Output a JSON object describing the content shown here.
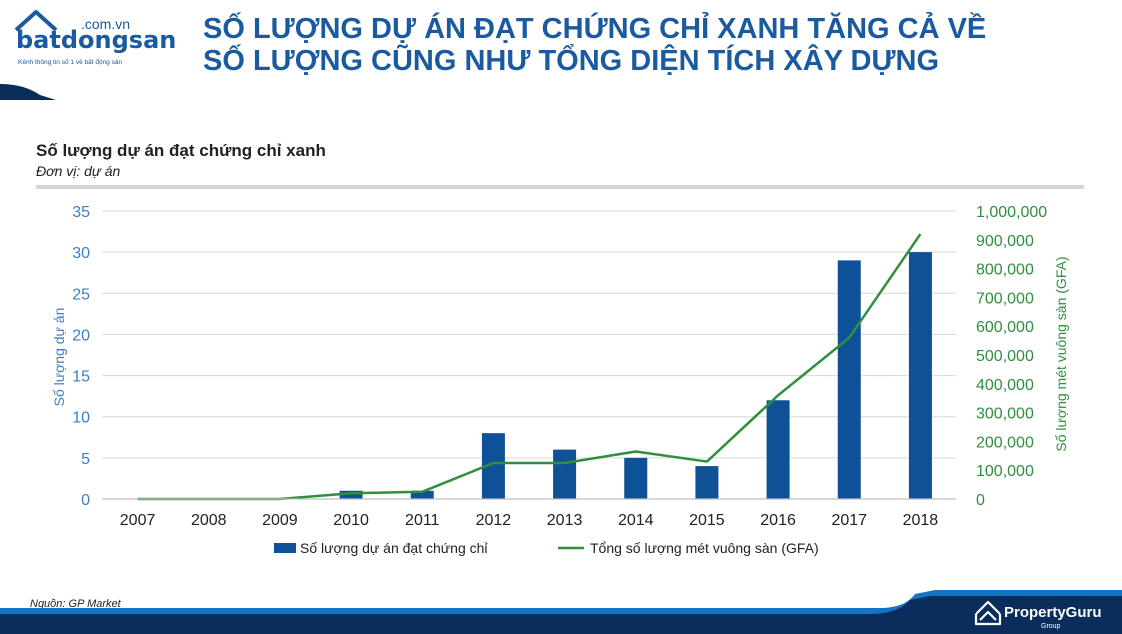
{
  "header": {
    "logo": {
      "name": "batdongsan",
      "domain": ".com.vn",
      "tagline": "Kênh thông tin số 1 về bất động sản"
    },
    "title_line1": "SỐ LƯỢNG DỰ ÁN ĐẠT CHỨNG CHỈ XANH TĂNG CẢ VỀ",
    "title_line2": "SỐ LƯỢNG CŨNG NHƯ TỔNG DIỆN TÍCH XÂY DỰNG"
  },
  "colors": {
    "brand_blue": "#1a5aa0",
    "bar_blue": "#0e5197",
    "line_green": "#2f8f3f",
    "left_axis_text": "#3d7fc0",
    "right_axis_text": "#2f8f3f",
    "footer_navy": "#0b2d5b",
    "footer_blue": "#1573c6"
  },
  "chart_data": {
    "type": "bar",
    "title": "Số lượng dự án đạt chứng chỉ xanh",
    "subtitle": "Đơn vị: dự án",
    "categories": [
      "2007",
      "2008",
      "2009",
      "2010",
      "2011",
      "2012",
      "2013",
      "2014",
      "2015",
      "2016",
      "2017",
      "2018"
    ],
    "series": [
      {
        "name": "Số lượng dự án đạt chứng chỉ",
        "type": "bar",
        "axis": "left",
        "values": [
          0,
          0,
          0,
          1,
          1,
          8,
          6,
          5,
          4,
          12,
          29,
          30
        ]
      },
      {
        "name": "Tổng số lượng mét vuông sàn (GFA)",
        "type": "line",
        "axis": "right",
        "values": [
          0,
          0,
          0,
          20000,
          25000,
          125000,
          125000,
          165000,
          130000,
          360000,
          560000,
          920000
        ]
      }
    ],
    "ylabel": "Số lượng dự án",
    "ylim": [
      0,
      35
    ],
    "yticks": [
      "0",
      "5",
      "10",
      "15",
      "20",
      "25",
      "30",
      "35"
    ],
    "y2label": "Số lượng mét vuông sàn (GFA)",
    "y2lim": [
      0,
      1000000
    ],
    "y2ticks": [
      "0",
      "100,000",
      "200,000",
      "300,000",
      "400,000",
      "500,000",
      "600,000",
      "700,000",
      "800,000",
      "900,000",
      "1,000,000"
    ],
    "grid": true,
    "legend": "bottom"
  },
  "footer": {
    "source": "Nguồn: GP Market",
    "brand": "PropertyGuru",
    "brand_sub": "Group"
  }
}
